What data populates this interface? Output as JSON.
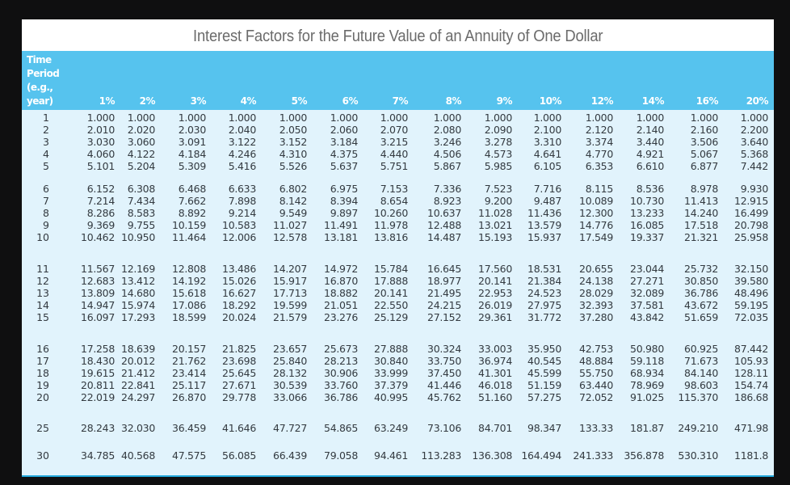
{
  "title": "Interest Factors for the Future Value of an Annuity of One Dollar",
  "header": {
    "period_label_lines": [
      "Time",
      "Period",
      "(e.g.,",
      "year)"
    ],
    "rates": [
      "1%",
      "2%",
      "3%",
      "4%",
      "5%",
      "6%",
      "7%",
      "8%",
      "9%",
      "10%",
      "12%",
      "14%",
      "16%",
      "20%"
    ]
  },
  "colors": {
    "header_bg": "#56c3ee",
    "body_bg": "#e1f3fc",
    "title_bg": "#ffffff",
    "title_text": "#6b6b6b",
    "page_bg": "#0f0f10",
    "bottom_border": "#22a9dc"
  },
  "rows": [
    {
      "period": "1",
      "values": [
        "1.000",
        "1.000",
        "1.000",
        "1.000",
        "1.000",
        "1.000",
        "1.000",
        "1.000",
        "1.000",
        "1.000",
        "1.000",
        "1.000",
        "1.000",
        "1.000"
      ]
    },
    {
      "period": "2",
      "values": [
        "2.010",
        "2.020",
        "2.030",
        "2.040",
        "2.050",
        "2.060",
        "2.070",
        "2.080",
        "2.090",
        "2.100",
        "2.120",
        "2.140",
        "2.160",
        "2.200"
      ]
    },
    {
      "period": "3",
      "values": [
        "3.030",
        "3.060",
        "3.091",
        "3.122",
        "3.152",
        "3.184",
        "3.215",
        "3.246",
        "3.278",
        "3.310",
        "3.374",
        "3.440",
        "3.506",
        "3.640"
      ]
    },
    {
      "period": "4",
      "values": [
        "4.060",
        "4.122",
        "4.184",
        "4.246",
        "4.310",
        "4.375",
        "4.440",
        "4.506",
        "4.573",
        "4.641",
        "4.770",
        "4.921",
        "5.067",
        "5.368"
      ]
    },
    {
      "period": "5",
      "values": [
        "5.101",
        "5.204",
        "5.309",
        "5.416",
        "5.526",
        "5.637",
        "5.751",
        "5.867",
        "5.985",
        "6.105",
        "6.353",
        "6.610",
        "6.877",
        "7.442"
      ]
    },
    {
      "period": "6",
      "values": [
        "6.152",
        "6.308",
        "6.468",
        "6.633",
        "6.802",
        "6.975",
        "7.153",
        "7.336",
        "7.523",
        "7.716",
        "8.115",
        "8.536",
        "8.978",
        "9.930"
      ]
    },
    {
      "period": "7",
      "values": [
        "7.214",
        "7.434",
        "7.662",
        "7.898",
        "8.142",
        "8.394",
        "8.654",
        "8.923",
        "9.200",
        "9.487",
        "10.089",
        "10.730",
        "11.413",
        "12.915"
      ]
    },
    {
      "period": "8",
      "values": [
        "8.286",
        "8.583",
        "8.892",
        "9.214",
        "9.549",
        "9.897",
        "10.260",
        "10.637",
        "11.028",
        "11.436",
        "12.300",
        "13.233",
        "14.240",
        "16.499"
      ]
    },
    {
      "period": "9",
      "values": [
        "9.369",
        "9.755",
        "10.159",
        "10.583",
        "11.027",
        "11.491",
        "11.978",
        "12.488",
        "13.021",
        "13.579",
        "14.776",
        "16.085",
        "17.518",
        "20.798"
      ]
    },
    {
      "period": "10",
      "values": [
        "10.462",
        "10.950",
        "11.464",
        "12.006",
        "12.578",
        "13.181",
        "13.816",
        "14.487",
        "15.193",
        "15.937",
        "17.549",
        "19.337",
        "21.321",
        "25.958"
      ]
    },
    {
      "period": "11",
      "values": [
        "11.567",
        "12.169",
        "12.808",
        "13.486",
        "14.207",
        "14.972",
        "15.784",
        "16.645",
        "17.560",
        "18.531",
        "20.655",
        "23.044",
        "25.732",
        "32.150"
      ]
    },
    {
      "period": "12",
      "values": [
        "12.683",
        "13.412",
        "14.192",
        "15.026",
        "15.917",
        "16.870",
        "17.888",
        "18.977",
        "20.141",
        "21.384",
        "24.138",
        "27.271",
        "30.850",
        "39.580"
      ]
    },
    {
      "period": "13",
      "values": [
        "13.809",
        "14.680",
        "15.618",
        "16.627",
        "17.713",
        "18.882",
        "20.141",
        "21.495",
        "22.953",
        "24.523",
        "28.029",
        "32.089",
        "36.786",
        "48.496"
      ]
    },
    {
      "period": "14",
      "values": [
        "14.947",
        "15.974",
        "17.086",
        "18.292",
        "19.599",
        "21.051",
        "22.550",
        "24.215",
        "26.019",
        "27.975",
        "32.393",
        "37.581",
        "43.672",
        "59.195"
      ]
    },
    {
      "period": "15",
      "values": [
        "16.097",
        "17.293",
        "18.599",
        "20.024",
        "21.579",
        "23.276",
        "25.129",
        "27.152",
        "29.361",
        "31.772",
        "37.280",
        "43.842",
        "51.659",
        "72.035"
      ]
    },
    {
      "period": "16",
      "values": [
        "17.258",
        "18.639",
        "20.157",
        "21.825",
        "23.657",
        "25.673",
        "27.888",
        "30.324",
        "33.003",
        "35.950",
        "42.753",
        "50.980",
        "60.925",
        "87.442"
      ]
    },
    {
      "period": "17",
      "values": [
        "18.430",
        "20.012",
        "21.762",
        "23.698",
        "25.840",
        "28.213",
        "30.840",
        "33.750",
        "36.974",
        "40.545",
        "48.884",
        "59.118",
        "71.673",
        "105.93"
      ]
    },
    {
      "period": "18",
      "values": [
        "19.615",
        "21.412",
        "23.414",
        "25.645",
        "28.132",
        "30.906",
        "33.999",
        "37.450",
        "41.301",
        "45.599",
        "55.750",
        "68.934",
        "84.140",
        "128.11"
      ]
    },
    {
      "period": "19",
      "values": [
        "20.811",
        "22.841",
        "25.117",
        "27.671",
        "30.539",
        "33.760",
        "37.379",
        "41.446",
        "46.018",
        "51.159",
        "63.440",
        "78.969",
        "98.603",
        "154.74"
      ]
    },
    {
      "period": "20",
      "values": [
        "22.019",
        "24.297",
        "26.870",
        "29.778",
        "33.066",
        "36.786",
        "40.995",
        "45.762",
        "51.160",
        "57.275",
        "72.052",
        "91.025",
        "115.370",
        "186.68"
      ]
    },
    {
      "period": "25",
      "values": [
        "28.243",
        "32.030",
        "36.459",
        "41.646",
        "47.727",
        "54.865",
        "63.249",
        "73.106",
        "84.701",
        "98.347",
        "133.33",
        "181.87",
        "249.210",
        "471.98"
      ]
    },
    {
      "period": "30",
      "values": [
        "34.785",
        "40.568",
        "47.575",
        "56.085",
        "66.439",
        "79.058",
        "94.461",
        "113.283",
        "136.308",
        "164.494",
        "241.333",
        "356.878",
        "530.310",
        "1181.8"
      ]
    }
  ]
}
